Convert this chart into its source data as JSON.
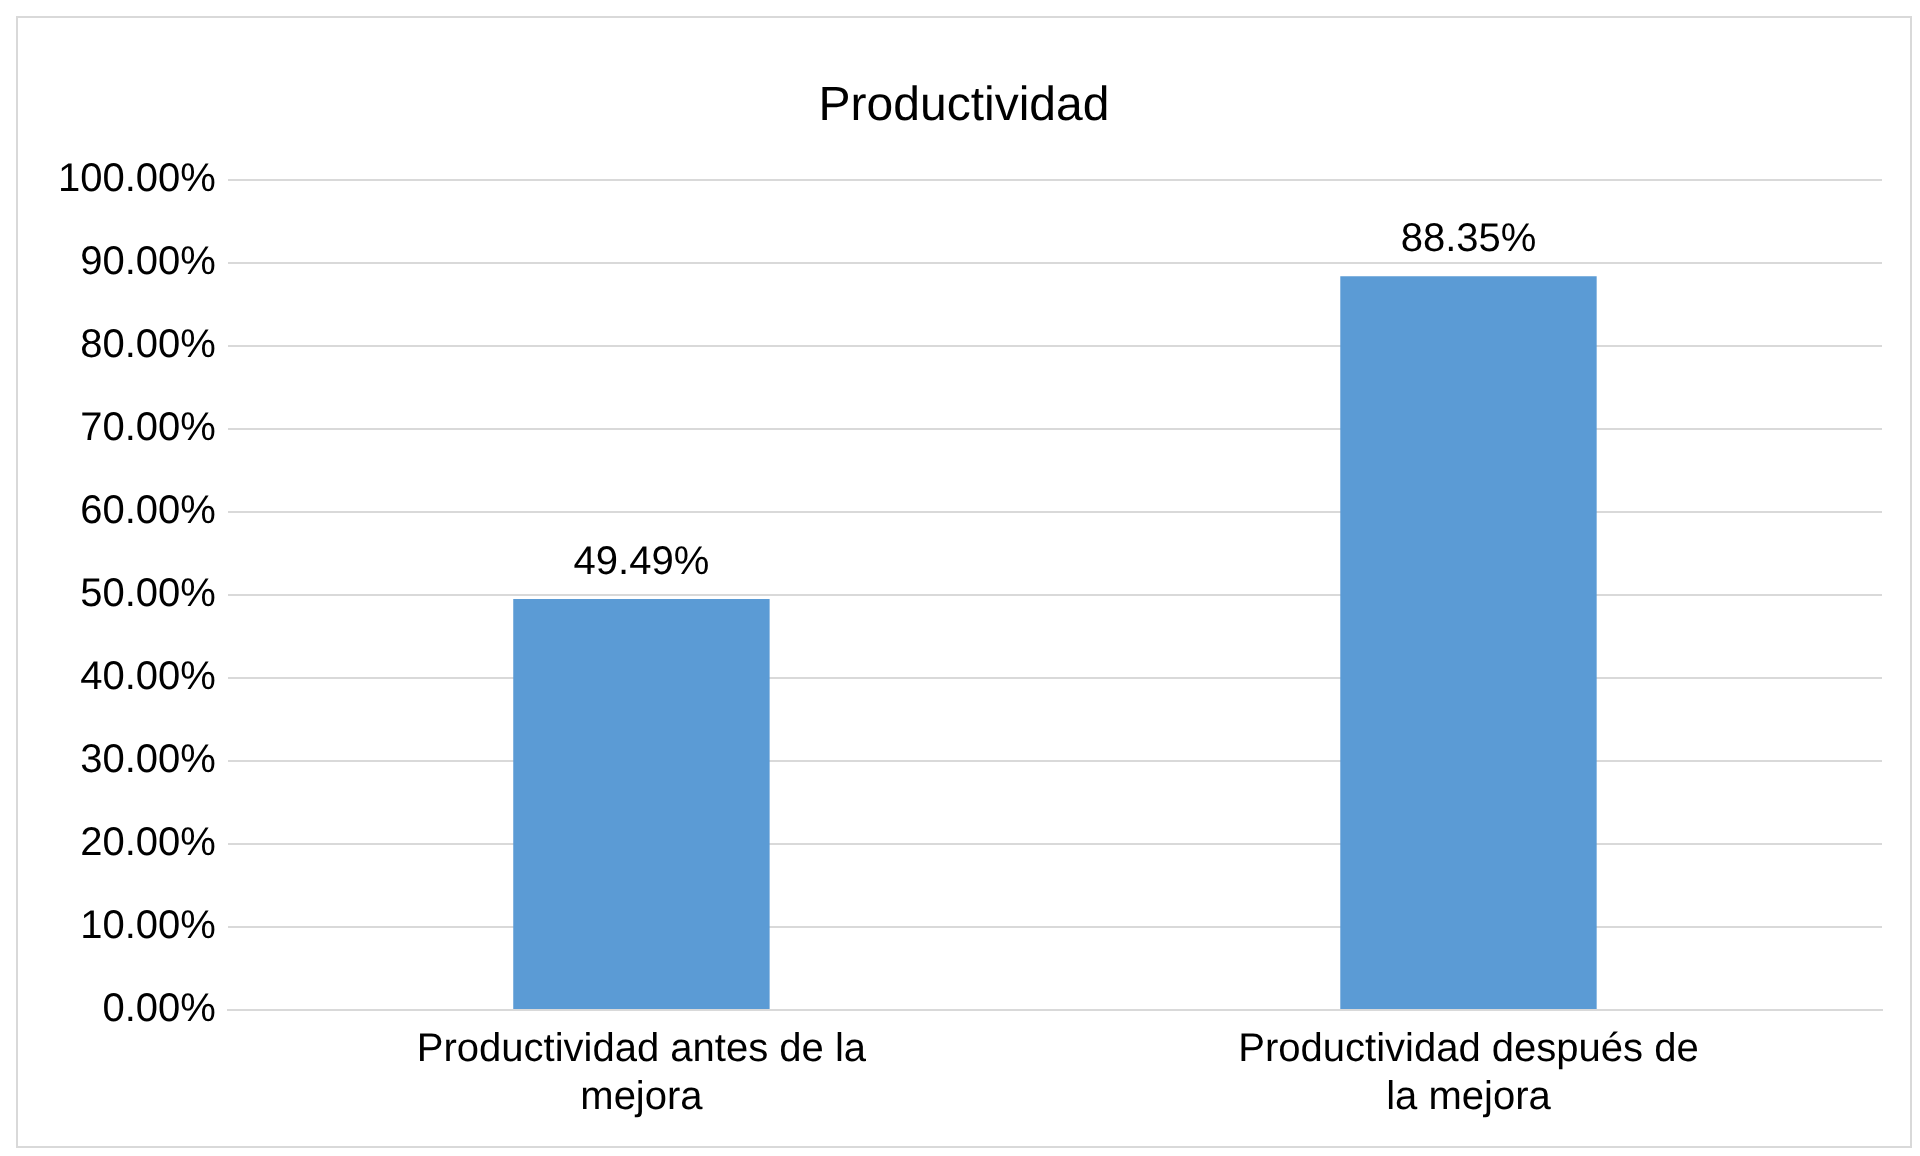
{
  "chart_data": {
    "type": "bar",
    "title": "Productividad",
    "categories": [
      "Productividad antes de la mejora",
      "Productividad después de la mejora"
    ],
    "values": [
      49.49,
      88.35
    ],
    "color": "#5b9bd5",
    "value_labels": [
      "49.49%",
      "88.35%"
    ],
    "ylim": [
      0,
      100
    ],
    "yticks": [
      {
        "value": 0,
        "label": "0.00%"
      },
      {
        "value": 10,
        "label": "10.00%"
      },
      {
        "value": 20,
        "label": "20.00%"
      },
      {
        "value": 30,
        "label": "30.00%"
      },
      {
        "value": 40,
        "label": "40.00%"
      },
      {
        "value": 50,
        "label": "50.00%"
      },
      {
        "value": 60,
        "label": "60.00%"
      },
      {
        "value": 70,
        "label": "70.00%"
      },
      {
        "value": 80,
        "label": "80.00%"
      },
      {
        "value": 90,
        "label": "90.00%"
      },
      {
        "value": 100,
        "label": "100.00%"
      }
    ],
    "grid": "y",
    "legend": false
  }
}
